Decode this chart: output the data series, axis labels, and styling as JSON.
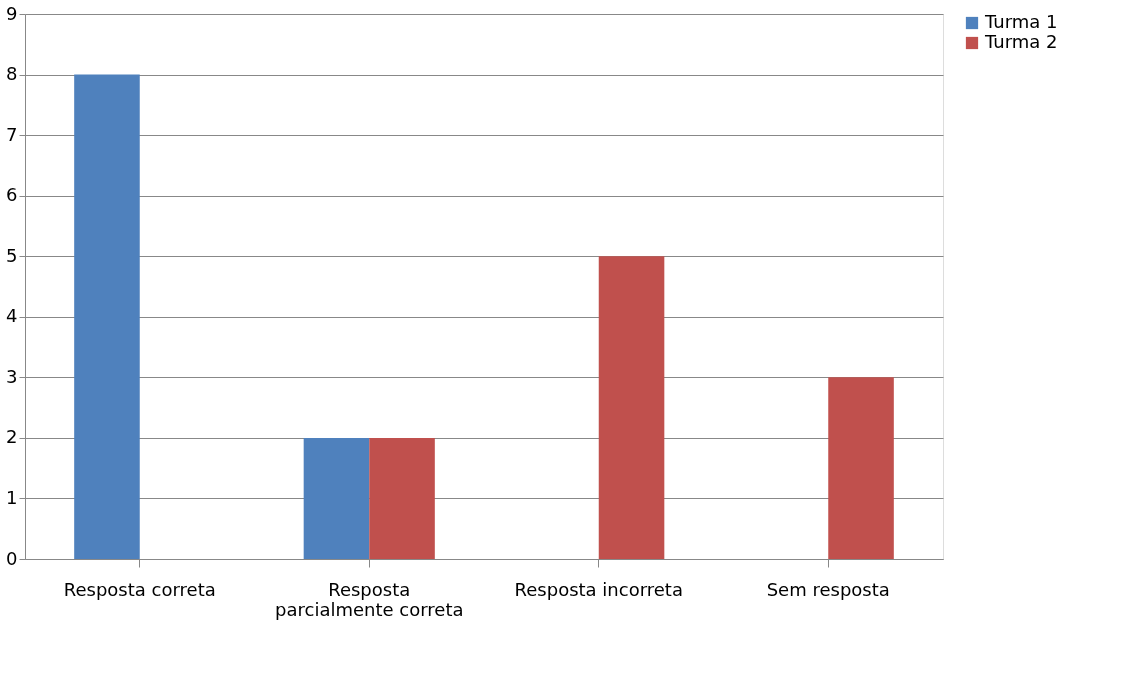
{
  "chart_data": {
    "type": "bar",
    "categories": [
      "Resposta correta",
      "Resposta parcialmente correta",
      "Resposta incorreta",
      "Sem resposta"
    ],
    "series": [
      {
        "name": "Turma 1",
        "color": "#4f81bd",
        "values": [
          8,
          2,
          0,
          0
        ]
      },
      {
        "name": "Turma 2",
        "color": "#c0504d",
        "values": [
          0,
          2,
          5,
          3
        ]
      }
    ],
    "ylim": [
      0,
      9
    ],
    "yticks": [
      0,
      1,
      2,
      3,
      4,
      5,
      6,
      7,
      8,
      9
    ],
    "grid": "y",
    "legend": "right"
  }
}
